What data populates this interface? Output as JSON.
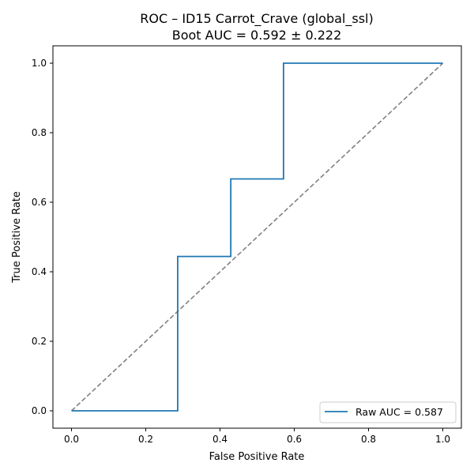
{
  "chart_data": {
    "type": "line",
    "title": "ROC – ID15 Carrot_Crave (global_ssl)",
    "subtitle": "Boot AUC = 0.592 ± 0.222",
    "xlabel": "False Positive Rate",
    "ylabel": "True Positive Rate",
    "xlim": [
      -0.05,
      1.05
    ],
    "ylim": [
      -0.05,
      1.05
    ],
    "xticks": [
      "0.0",
      "0.2",
      "0.4",
      "0.6",
      "0.8",
      "1.0"
    ],
    "yticks": [
      "0.0",
      "0.2",
      "0.4",
      "0.6",
      "0.8",
      "1.0"
    ],
    "grid": false,
    "legend_position": "lower-right",
    "series": [
      {
        "name": "Raw AUC = 0.587",
        "color": "#1f77b4",
        "style": "solid",
        "x": [
          0.0,
          0.286,
          0.286,
          0.429,
          0.429,
          0.571,
          0.571,
          1.0
        ],
        "y": [
          0.0,
          0.0,
          0.444,
          0.444,
          0.667,
          0.667,
          1.0,
          1.0
        ]
      },
      {
        "color": "#808080",
        "style": "dashed",
        "x": [
          0.0,
          1.0
        ],
        "y": [
          0.0,
          1.0
        ]
      }
    ]
  }
}
